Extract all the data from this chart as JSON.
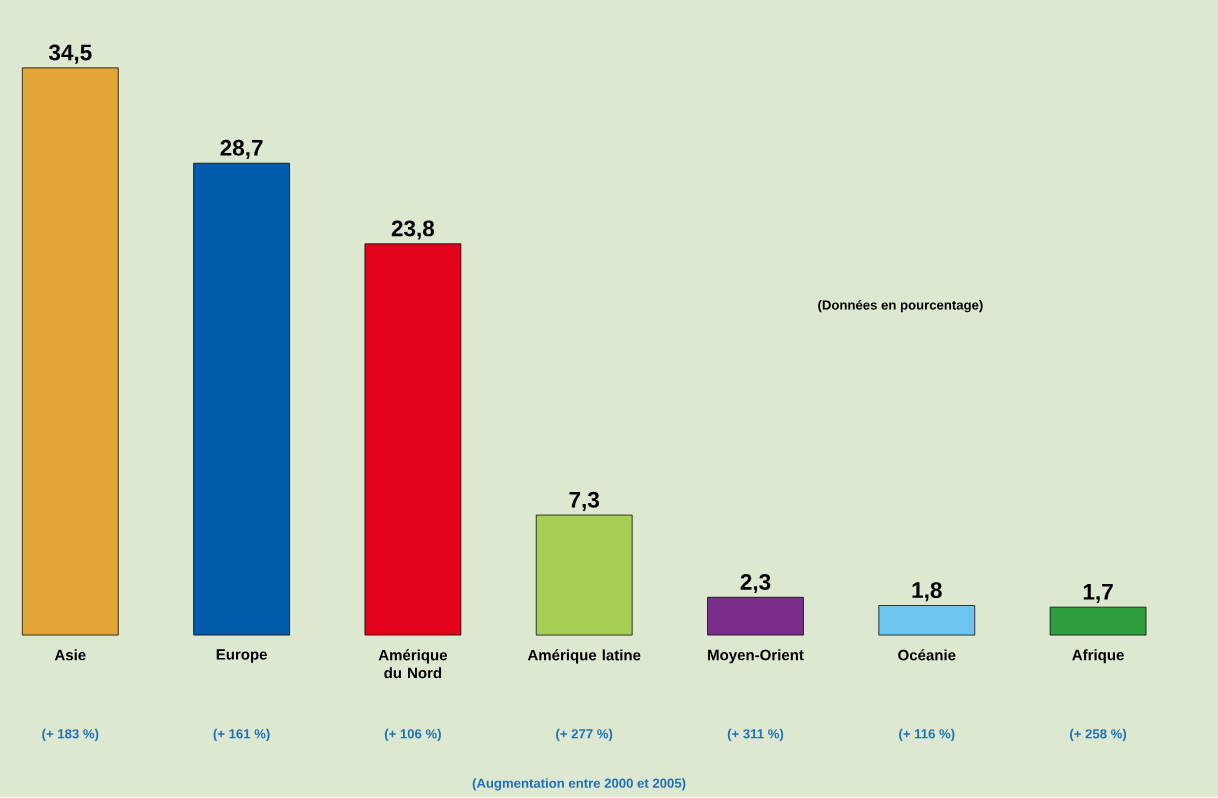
{
  "chart_data": {
    "type": "bar",
    "categories": [
      "Asie",
      "Europe",
      "Amérique du Nord",
      "Amérique latine",
      "Moyen-Orient",
      "Océanie",
      "Afrique"
    ],
    "values": [
      34.5,
      28.7,
      23.8,
      7.3,
      2.3,
      1.8,
      1.7
    ],
    "value_labels": [
      "34,5",
      "28,7",
      "23,8",
      "7,3",
      "2,3",
      "1,8",
      "1,7"
    ],
    "colors": [
      "#e3a535",
      "#005bab",
      "#e2001a",
      "#a8cf55",
      "#7b2d8b",
      "#6ec6f0",
      "#2e9e3f"
    ],
    "annotations": [
      "(+ 183 %)",
      "(+ 161 %)",
      "(+ 106 %)",
      "(+ 277 %)",
      "(+ 311 %)",
      "(+ 116 %)",
      "(+ 258 %)",
      "(Données en pourcentage)",
      "(Augmentation entre 2000 et 2005)"
    ]
  }
}
